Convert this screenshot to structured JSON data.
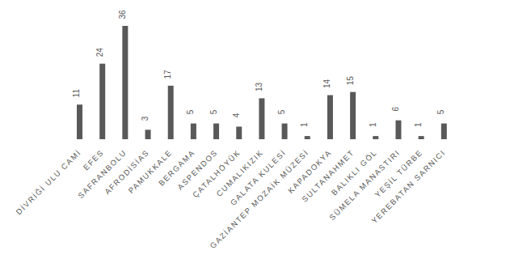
{
  "chart_data": {
    "type": "bar",
    "categories": [
      "DİVRİĞİ ULU CAMİ",
      "EFES",
      "SAFRANBOLU",
      "AFRODİSİAS",
      "PAMUKKALE",
      "BERGAMA",
      "ASPENDOS",
      "ÇATALHÖYÜK",
      "CUMALIKIZIK",
      "GALATA KULESİ",
      "GAZİANTEP MOZAİK MÜZESİ",
      "KAPADOKYA",
      "SULTANAHMET",
      "BALIKLI GÖL",
      "SÜMELA MANASTIRI",
      "YEŞİL TÜRBE",
      "YEREBATAN SARNICI"
    ],
    "values": [
      11,
      24,
      36,
      3,
      17,
      5,
      5,
      4,
      13,
      5,
      1,
      14,
      15,
      1,
      6,
      1,
      5
    ],
    "color": "#595959",
    "data_labels": true,
    "tick_labels": "x",
    "grid": false
  }
}
